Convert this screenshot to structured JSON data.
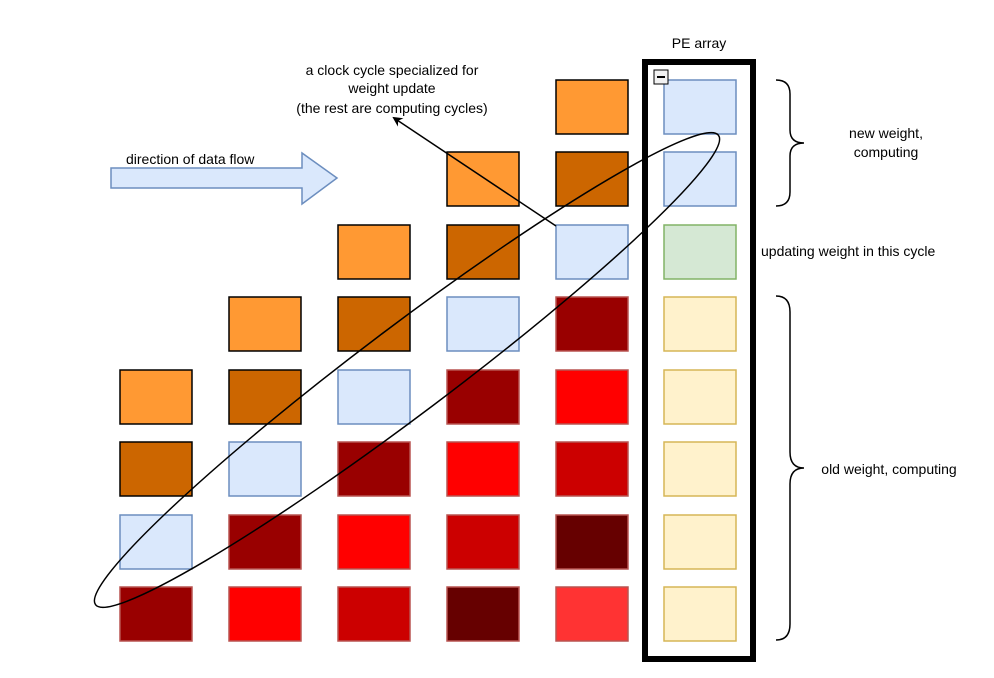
{
  "labels": {
    "pe_array": "PE array",
    "clock_cycle_line1": "a clock cycle specialized for",
    "clock_cycle_line2": "weight update",
    "clock_cycle_line3": "(the rest are computing cycles)",
    "direction": "direction of data flow",
    "new_weight_line1": "new weight,",
    "new_weight_line2": "computing",
    "updating": "updating weight in this cycle",
    "old_weight": "old weight, computing",
    "collapse_symbol": "−"
  },
  "colors": {
    "orange_light": "#FF9933",
    "orange_dark": "#CC6600",
    "blue_light": "#DAE8FC",
    "blue_border": "#6C8EBF",
    "green_light": "#D5E8D4",
    "green_border": "#82B366",
    "yellow_light": "#FFF2CC",
    "yellow_border": "#D6B656",
    "dark_red": "#990000",
    "red": "#FF0000",
    "mid_red": "#CC0000",
    "maroon": "#660000",
    "light_red": "#FF3333"
  },
  "grid_rows": [
    [
      "",
      "",
      "",
      "",
      "orange_light",
      "blue_light"
    ],
    [
      "",
      "",
      "",
      "orange_light",
      "orange_dark",
      "blue_light"
    ],
    [
      "",
      "",
      "orange_light",
      "orange_dark",
      "blue_light",
      "green_light"
    ],
    [
      "",
      "orange_light",
      "orange_dark",
      "blue_light",
      "dark_red",
      "yellow_light"
    ],
    [
      "orange_light",
      "orange_dark",
      "blue_light",
      "dark_red",
      "red",
      "yellow_light"
    ],
    [
      "orange_dark",
      "blue_light",
      "dark_red",
      "red",
      "mid_red",
      "yellow_light"
    ],
    [
      "blue_light",
      "dark_red",
      "red",
      "mid_red",
      "maroon",
      "yellow_light"
    ],
    [
      "dark_red",
      "red",
      "mid_red",
      "maroon",
      "light_red",
      "yellow_light"
    ]
  ]
}
